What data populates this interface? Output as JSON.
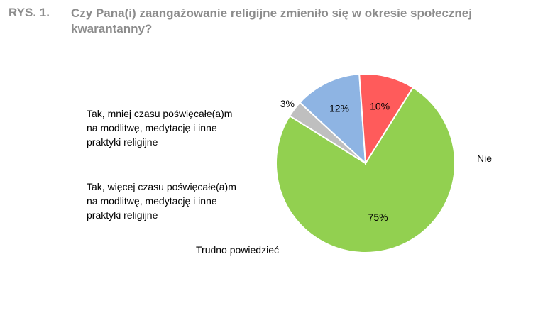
{
  "figure": {
    "label": "RYS. 1.",
    "title": "Czy Pana(i) zaangażowanie religijne zmieniło się w okresie społecznej kwarantanny?"
  },
  "chart_data": {
    "type": "pie",
    "title": "Czy Pana(i) zaangażowanie religijne zmieniło się w okresie społecznej kwarantanny?",
    "slices": [
      {
        "label": "Nie",
        "label_lines": [
          "Nie"
        ],
        "value": 75,
        "value_label": "75%",
        "color": "#92d050"
      },
      {
        "label": "Trudno powiedzieć",
        "label_lines": [
          "Trudno powiedzieć"
        ],
        "value": 3,
        "value_label": "3%",
        "color": "#bfbfbf"
      },
      {
        "label": "Tak, więcej czasu poświęcałe(a)m na modlitwę, medytację i inne praktyki religijne",
        "label_lines": [
          "Tak, więcej czasu poświęcałe(a)m",
          "na modlitwę, medytację i inne",
          "praktyki religijne"
        ],
        "value": 12,
        "value_label": "12%",
        "color": "#8eb4e3"
      },
      {
        "label": "Tak, mniej czasu poświęcałe(a)m na modlitwę, medytację i inne praktyki religijne",
        "label_lines": [
          "Tak, mniej czasu poświęcałe(a)m",
          "na modlitwę, medytację i inne",
          "praktyki religijne"
        ],
        "value": 10,
        "value_label": "10%",
        "color": "#ff5b5b"
      }
    ],
    "start_angle_deg": -58,
    "direction": "clockwise",
    "legend": "none"
  }
}
